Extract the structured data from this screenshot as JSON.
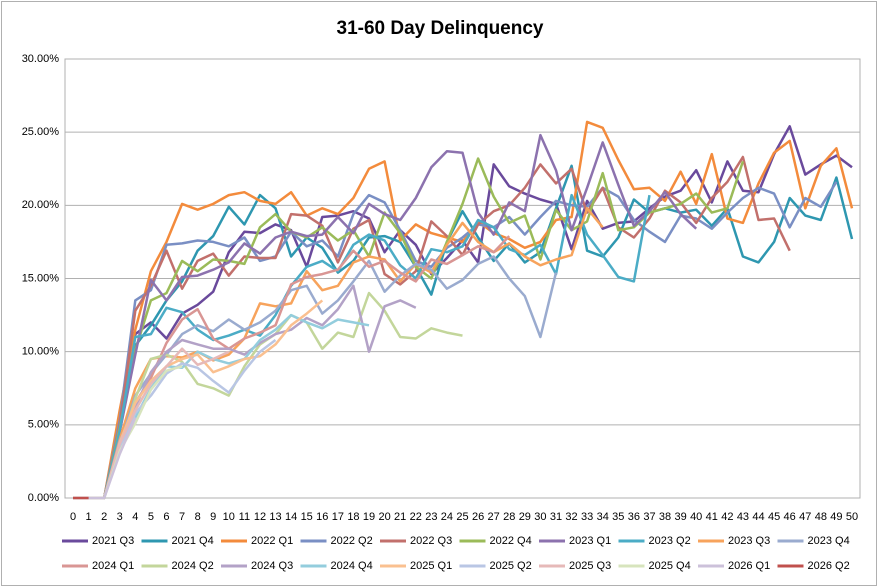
{
  "chart_data": {
    "type": "line",
    "title": "31-60 Day Delinquency",
    "categories": [
      "0",
      "1",
      "2",
      "3",
      "4",
      "5",
      "6",
      "7",
      "8",
      "9",
      "10",
      "11",
      "12",
      "13",
      "14",
      "15",
      "16",
      "17",
      "18",
      "19",
      "20",
      "21",
      "22",
      "23",
      "24",
      "25",
      "26",
      "27",
      "28",
      "29",
      "30",
      "31",
      "32",
      "33",
      "34",
      "35",
      "36",
      "37",
      "38",
      "39",
      "40",
      "41",
      "42",
      "43",
      "44",
      "45",
      "46",
      "47",
      "48",
      "49",
      "50"
    ],
    "ylim": [
      0,
      30
    ],
    "yticks": [
      {
        "value": 0,
        "label": "0.00%"
      },
      {
        "value": 5,
        "label": "5.00%"
      },
      {
        "value": 10,
        "label": "10.00%"
      },
      {
        "value": 15,
        "label": "15.00%"
      },
      {
        "value": 20,
        "label": "20.00%"
      },
      {
        "value": 25,
        "label": "25.00%"
      },
      {
        "value": 30,
        "label": "30.00%"
      }
    ],
    "grid": true,
    "legend": "bottom",
    "series": [
      {
        "name": "2021 Q3",
        "color": "#6a4a9c",
        "values": [
          0,
          0,
          0,
          5.5,
          11.2,
          12,
          10.9,
          12.6,
          13.2,
          14.1,
          16.8,
          18.2,
          18.1,
          18.7,
          18.3,
          15.8,
          19.2,
          19.3,
          19.6,
          19.1,
          16.8,
          18.3,
          17.3,
          15.3,
          16.4,
          17.6,
          16.1,
          22.8,
          21.3,
          20.8,
          20.4,
          20.1,
          17.0,
          20.3,
          18.4,
          18.8,
          18.9,
          19.8,
          20.6,
          21.0,
          22.4,
          20.2,
          23.0,
          21.0,
          20.9,
          23.5,
          25.4,
          22.1,
          22.8,
          23.4,
          22.6
        ]
      },
      {
        "name": "2021 Q4",
        "color": "#2e97b0",
        "values": [
          0,
          0,
          0,
          5.2,
          10.4,
          11.8,
          13.5,
          14.8,
          16.9,
          17.9,
          19.9,
          18.7,
          20.7,
          19.8,
          16.5,
          17.8,
          17.1,
          15.4,
          16.2,
          17.8,
          17.9,
          17.5,
          15.8,
          13.9,
          17.5,
          19.6,
          17.8,
          16.2,
          17.4,
          16.1,
          16.8,
          19.8,
          22.7,
          16.9,
          16.5,
          17.8,
          20.4,
          19.5,
          19.8,
          19.5,
          19.7,
          18.6,
          19.8,
          16.5,
          16.1,
          17.5,
          20.5,
          19.3,
          19.0,
          21.9,
          17.7
        ]
      },
      {
        "name": "2022 Q1",
        "color": "#f38b3c",
        "values": [
          0,
          0,
          0,
          6.0,
          11.5,
          15.5,
          17.5,
          20.1,
          19.7,
          20.1,
          20.7,
          20.9,
          20.3,
          20.1,
          20.9,
          19.3,
          19.8,
          19.4,
          20.5,
          22.5,
          23.0,
          17.6,
          18.7,
          18.1,
          17.8,
          17.5,
          18.9,
          18.1,
          17.7,
          17.1,
          17.5,
          19.0,
          19.2,
          25.7,
          25.3,
          23.1,
          21.1,
          21.2,
          20.3,
          22.3,
          20.1,
          23.5,
          19.1,
          18.8,
          21.5,
          23.6,
          24.4,
          19.8,
          22.7,
          23.9,
          19.8
        ]
      },
      {
        "name": "2022 Q2",
        "color": "#7a8fc4",
        "values": [
          0,
          0,
          0,
          5.3,
          13.5,
          14.2,
          17.3,
          17.4,
          17.6,
          17.5,
          17.2,
          17.8,
          16.2,
          16.5,
          18.2,
          17.2,
          17.6,
          16.5,
          19.4,
          20.7,
          20.2,
          18.3,
          16.2,
          15.8,
          17.1,
          17.8,
          18.7,
          18.5,
          19.2,
          18.0,
          19.2,
          20.3,
          20.0,
          19.9,
          21.2,
          20.6,
          19.0,
          18.2,
          17.5,
          19.3,
          19.1,
          18.4,
          19.5,
          20.5,
          21.2,
          20.8,
          18.5,
          20.5,
          19.9,
          21.6,
          null
        ]
      },
      {
        "name": "2022 Q3",
        "color": "#c2706c",
        "values": [
          0,
          0,
          0,
          5.0,
          12.8,
          14.5,
          16.9,
          14.3,
          16.2,
          16.7,
          15.2,
          16.5,
          16.4,
          16.4,
          19.4,
          19.3,
          18.6,
          16.1,
          18.4,
          19.0,
          15.3,
          14.6,
          15.5,
          18.9,
          17.9,
          16.6,
          18.7,
          19.6,
          20.0,
          21.2,
          22.8,
          21.5,
          22.5,
          19.5,
          21.2,
          18.5,
          17.8,
          19.1,
          21.0,
          20.2,
          18.8,
          20.5,
          21.6,
          23.3,
          19.0,
          19.1,
          16.9,
          null,
          null,
          null,
          null
        ]
      },
      {
        "name": "2022 Q4",
        "color": "#9bbb59",
        "values": [
          0,
          0,
          0,
          4.8,
          10.1,
          13.5,
          14.0,
          16.2,
          15.5,
          16.3,
          16.2,
          16.0,
          18.5,
          19.4,
          18.2,
          17.8,
          18.5,
          17.6,
          18.3,
          16.5,
          19.5,
          18.1,
          15.8,
          15.0,
          17.5,
          20.1,
          23.2,
          20.6,
          18.8,
          19.3,
          16.3,
          19.7,
          18.3,
          18.9,
          22.2,
          18.3,
          18.5,
          19.5,
          19.8,
          20.1,
          20.8,
          19.5,
          19.8,
          23.0,
          null,
          null,
          null,
          null,
          null,
          null,
          null
        ]
      },
      {
        "name": "2023 Q1",
        "color": "#8c72ae",
        "values": [
          0,
          0,
          0,
          4.5,
          9.8,
          14.9,
          13.5,
          15.1,
          15.2,
          15.6,
          16.1,
          17.4,
          16.7,
          17.8,
          18.2,
          17.9,
          18.0,
          19.2,
          18.1,
          20.1,
          19.4,
          19.0,
          20.5,
          22.6,
          23.7,
          23.6,
          19.5,
          18.0,
          20.2,
          19.6,
          24.8,
          22.4,
          18.3,
          21.2,
          24.3,
          21.4,
          18.6,
          19.6,
          20.9,
          19.4,
          18.4,
          null,
          null,
          null,
          null,
          null,
          null,
          null,
          null,
          null,
          null
        ]
      },
      {
        "name": "2023 Q2",
        "color": "#4bacc6",
        "values": [
          0,
          0,
          0,
          4.6,
          11.0,
          11.2,
          13.0,
          12.7,
          11.5,
          10.8,
          11.1,
          11.5,
          11.1,
          12.5,
          14.5,
          15.8,
          16.2,
          15.5,
          17.3,
          18.0,
          17.6,
          15.9,
          15.0,
          17.0,
          16.8,
          17.2,
          19.0,
          18.5,
          17.0,
          16.6,
          17.3,
          15.3,
          20.7,
          18.0,
          16.6,
          15.1,
          14.8,
          20.7,
          null,
          null,
          null,
          null,
          null,
          null,
          null,
          null,
          null,
          null,
          null,
          null,
          null
        ]
      },
      {
        "name": "2023 Q3",
        "color": "#f7a35c",
        "values": [
          0,
          0,
          0,
          4.0,
          7.5,
          9.5,
          9.7,
          9.6,
          10.0,
          9.4,
          9.8,
          10.9,
          13.3,
          13.1,
          13.3,
          15.5,
          14.2,
          14.5,
          16.1,
          16.5,
          16.3,
          14.8,
          16.0,
          15.4,
          17.3,
          18.8,
          17.5,
          16.8,
          17.4,
          16.5,
          15.9,
          16.3,
          16.6,
          19.8,
          18.5,
          null,
          null,
          null,
          null,
          null,
          null,
          null,
          null,
          null,
          null,
          null,
          null,
          null,
          null,
          null,
          null
        ]
      },
      {
        "name": "2023 Q4",
        "color": "#9aabcf",
        "values": [
          0,
          0,
          0,
          3.6,
          7.0,
          8.5,
          9.8,
          11.2,
          11.8,
          11.4,
          12.2,
          11.5,
          12.0,
          12.8,
          14.2,
          14.5,
          12.6,
          13.5,
          14.8,
          16.2,
          14.1,
          15.2,
          16.0,
          15.6,
          14.3,
          14.9,
          16.0,
          16.5,
          15.0,
          13.8,
          11.0,
          15.4,
          null,
          null,
          null,
          null,
          null,
          null,
          null,
          null,
          null,
          null,
          null,
          null,
          null,
          null,
          null,
          null,
          null,
          null,
          null
        ]
      },
      {
        "name": "2024 Q1",
        "color": "#d99694",
        "values": [
          0,
          0,
          0,
          3.5,
          6.5,
          8.2,
          10.6,
          12.2,
          12.9,
          10.9,
          10.2,
          10.9,
          11.3,
          11.8,
          14.6,
          15.1,
          15.3,
          15.6,
          16.9,
          15.8,
          16.2,
          15.4,
          14.8,
          16.3,
          16.0,
          16.6,
          17.2,
          16.8,
          17.9,
          null,
          null,
          null,
          null,
          null,
          null,
          null,
          null,
          null,
          null,
          null,
          null,
          null,
          null,
          null,
          null,
          null,
          null,
          null,
          null,
          null,
          null
        ]
      },
      {
        "name": "2024 Q2",
        "color": "#c3d69b",
        "values": [
          0,
          0,
          0,
          3.3,
          6.8,
          9.5,
          9.8,
          9.3,
          7.8,
          7.5,
          7.0,
          9.0,
          10.5,
          11.2,
          12.5,
          12.0,
          10.2,
          11.3,
          11.0,
          14.0,
          12.8,
          11.0,
          10.9,
          11.6,
          11.3,
          11.1,
          null,
          null,
          null,
          null,
          null,
          null,
          null,
          null,
          null,
          null,
          null,
          null,
          null,
          null,
          null,
          null,
          null,
          null,
          null,
          null,
          null,
          null,
          null,
          null,
          null
        ]
      },
      {
        "name": "2024 Q3",
        "color": "#b3a2c7",
        "values": [
          0,
          0,
          0,
          3.9,
          6.2,
          8.6,
          10.0,
          10.8,
          10.5,
          10.2,
          10.2,
          9.8,
          10.6,
          11.2,
          11.5,
          12.3,
          11.8,
          12.9,
          14.5,
          10.0,
          13.1,
          13.5,
          13.0,
          null,
          null,
          null,
          null,
          null,
          null,
          null,
          null,
          null,
          null,
          null,
          null,
          null,
          null,
          null,
          null,
          null,
          null,
          null,
          null,
          null,
          null,
          null,
          null,
          null,
          null,
          null,
          null
        ]
      },
      {
        "name": "2024 Q4",
        "color": "#93cddd",
        "values": [
          0,
          0,
          0,
          3.6,
          5.5,
          7.5,
          9.0,
          8.9,
          10.0,
          9.5,
          9.2,
          9.5,
          10.8,
          11.5,
          12.5,
          12.0,
          11.6,
          12.2,
          12.0,
          11.8,
          null,
          null,
          null,
          null,
          null,
          null,
          null,
          null,
          null,
          null,
          null,
          null,
          null,
          null,
          null,
          null,
          null,
          null,
          null,
          null,
          null,
          null,
          null,
          null,
          null,
          null,
          null,
          null,
          null,
          null,
          null
        ]
      },
      {
        "name": "2025 Q1",
        "color": "#fac090",
        "values": [
          0,
          0,
          0,
          3.8,
          6.5,
          8.0,
          9.0,
          9.5,
          9.8,
          8.6,
          9.0,
          9.5,
          9.7,
          10.5,
          11.8,
          12.6,
          13.5,
          null,
          null,
          null,
          null,
          null,
          null,
          null,
          null,
          null,
          null,
          null,
          null,
          null,
          null,
          null,
          null,
          null,
          null,
          null,
          null,
          null,
          null,
          null,
          null,
          null,
          null,
          null,
          null,
          null,
          null,
          null,
          null,
          null,
          null
        ]
      },
      {
        "name": "2025 Q2",
        "color": "#b9c6e4",
        "values": [
          0,
          0,
          0,
          3.4,
          5.8,
          7.0,
          8.5,
          9.2,
          8.9,
          8.0,
          7.2,
          8.7,
          10.0,
          10.8,
          null,
          null,
          null,
          null,
          null,
          null,
          null,
          null,
          null,
          null,
          null,
          null,
          null,
          null,
          null,
          null,
          null,
          null,
          null,
          null,
          null,
          null,
          null,
          null,
          null,
          null,
          null,
          null,
          null,
          null,
          null,
          null,
          null,
          null,
          null,
          null,
          null
        ]
      },
      {
        "name": "2025 Q3",
        "color": "#e6b9b8",
        "values": [
          0,
          0,
          0,
          3.7,
          6.0,
          7.8,
          9.0,
          10.2,
          9.1,
          9.5,
          10.0,
          null,
          null,
          null,
          null,
          null,
          null,
          null,
          null,
          null,
          null,
          null,
          null,
          null,
          null,
          null,
          null,
          null,
          null,
          null,
          null,
          null,
          null,
          null,
          null,
          null,
          null,
          null,
          null,
          null,
          null,
          null,
          null,
          null,
          null,
          null,
          null,
          null,
          null,
          null,
          null
        ]
      },
      {
        "name": "2025 Q4",
        "color": "#d7e4bd",
        "values": [
          0,
          0,
          0,
          3.2,
          5.1,
          7.4,
          8.7,
          9.0,
          null,
          null,
          null,
          null,
          null,
          null,
          null,
          null,
          null,
          null,
          null,
          null,
          null,
          null,
          null,
          null,
          null,
          null,
          null,
          null,
          null,
          null,
          null,
          null,
          null,
          null,
          null,
          null,
          null,
          null,
          null,
          null,
          null,
          null,
          null,
          null,
          null,
          null,
          null,
          null,
          null,
          null,
          null
        ]
      },
      {
        "name": "2026 Q1",
        "color": "#ccc1da",
        "values": [
          0,
          0,
          0,
          3.0,
          5.5,
          null,
          null,
          null,
          null,
          null,
          null,
          null,
          null,
          null,
          null,
          null,
          null,
          null,
          null,
          null,
          null,
          null,
          null,
          null,
          null,
          null,
          null,
          null,
          null,
          null,
          null,
          null,
          null,
          null,
          null,
          null,
          null,
          null,
          null,
          null,
          null,
          null,
          null,
          null,
          null,
          null,
          null,
          null,
          null,
          null,
          null
        ]
      },
      {
        "name": "2026 Q2",
        "color": "#c0504d",
        "values": [
          0,
          0,
          null,
          null,
          null,
          null,
          null,
          null,
          null,
          null,
          null,
          null,
          null,
          null,
          null,
          null,
          null,
          null,
          null,
          null,
          null,
          null,
          null,
          null,
          null,
          null,
          null,
          null,
          null,
          null,
          null,
          null,
          null,
          null,
          null,
          null,
          null,
          null,
          null,
          null,
          null,
          null,
          null,
          null,
          null,
          null,
          null,
          null,
          null,
          null,
          null
        ]
      }
    ]
  }
}
